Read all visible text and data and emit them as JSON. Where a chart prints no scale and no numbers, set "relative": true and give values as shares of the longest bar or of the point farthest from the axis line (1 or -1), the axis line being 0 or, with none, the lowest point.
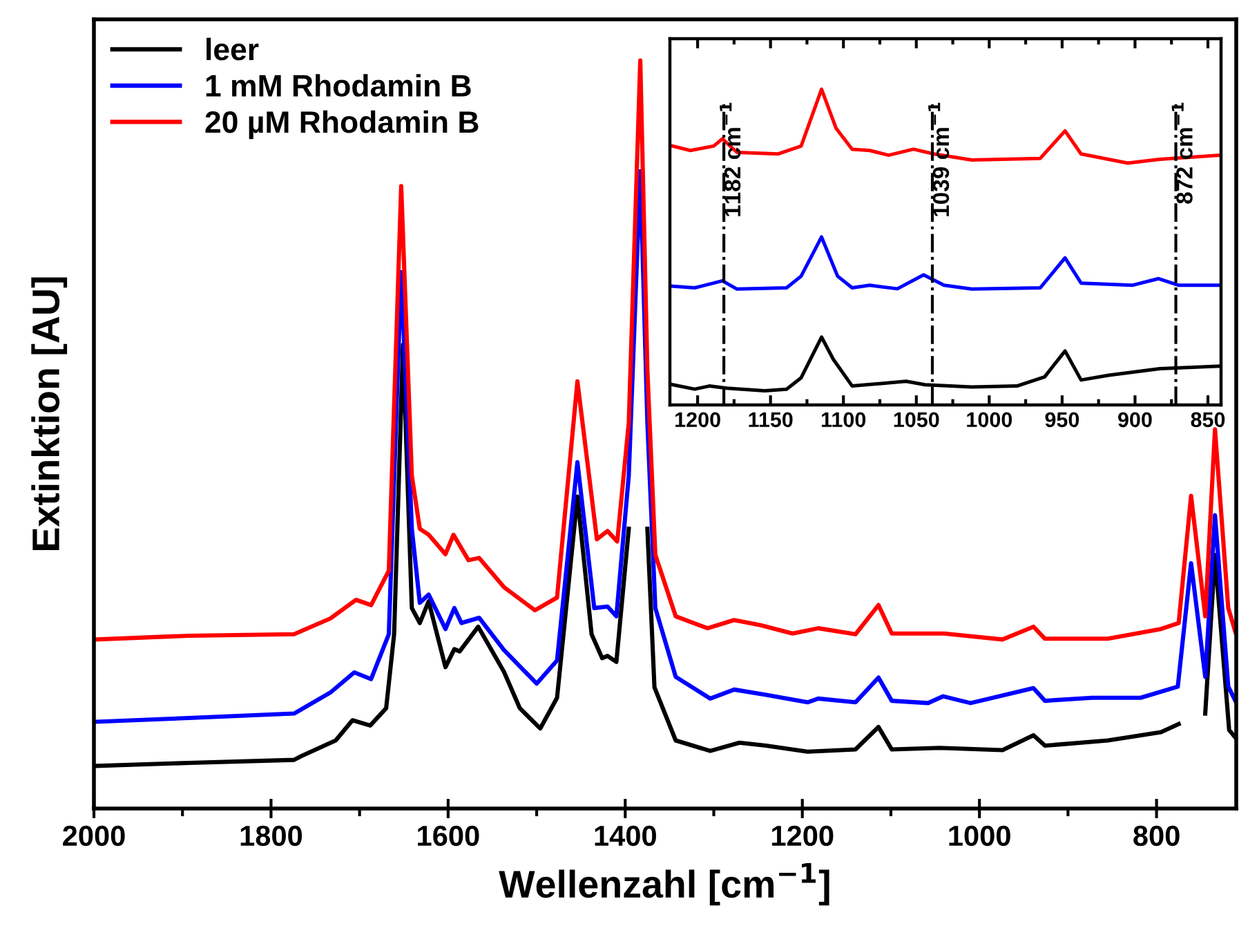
{
  "chart_data": [
    {
      "type": "line",
      "relative": true,
      "xlabel": "Wellenzahl [cm$^{−1}$]",
      "ylabel": "Extinktion [AU]",
      "xlim": [
        2000,
        710
      ],
      "xticks": [
        2000,
        {
          "value": 1900,
          "label": null
        },
        1800,
        {
          "value": 1700,
          "label": null
        },
        1600,
        {
          "value": 1500,
          "label": null
        },
        1400,
        {
          "value": 1300,
          "label": null
        },
        1200,
        {
          "value": 1100,
          "label": null
        },
        1000,
        {
          "value": 900,
          "label": null
        },
        800
      ],
      "tick_labels": "x",
      "legend": "top left",
      "grid": false,
      "series": [
        {
          "name": "leer",
          "color": "#000000",
          "x": [
            1997,
            1893,
            1774,
            1766,
            1727,
            1708,
            1688,
            1670,
            1661,
            1651,
            1641,
            1632,
            1622,
            1603,
            1593,
            1587,
            1566,
            1537,
            1519,
            1496,
            1477,
            1454,
            1438,
            1426,
            1420,
            1410,
            1396,
            1383,
            1375,
            1367,
            1343,
            1304,
            1271,
            1241,
            1194,
            1140,
            1114,
            1099,
            1045,
            974,
            939,
            926,
            855,
            795,
            775,
            761,
            745,
            734,
            718,
            711
          ],
          "values": [
            0.057,
            0.061,
            0.065,
            0.07,
            0.091,
            0.118,
            0.111,
            0.134,
            0.233,
            0.62,
            0.268,
            0.248,
            0.277,
            0.189,
            0.213,
            0.21,
            0.243,
            0.183,
            0.134,
            0.107,
            0.148,
            0.417,
            0.233,
            0.201,
            0.204,
            0.196,
            0.374,
            null,
            0.374,
            0.162,
            0.091,
            0.077,
            0.088,
            0.084,
            0.076,
            0.079,
            0.109,
            0.079,
            0.081,
            0.078,
            0.098,
            0.084,
            0.091,
            0.102,
            0.113,
            null,
            0.127,
            0.339,
            0.105,
            0.095
          ]
        },
        {
          "name": "1 mM Rhodamin B",
          "color": "#0000ff",
          "x": [
            1997,
            1893,
            1774,
            1733,
            1706,
            1687,
            1667,
            1653,
            1641,
            1632,
            1622,
            1603,
            1593,
            1585,
            1565,
            1537,
            1500,
            1477,
            1454,
            1435,
            1420,
            1410,
            1396,
            1383,
            1375,
            1366,
            1343,
            1304,
            1277,
            1241,
            1194,
            1182,
            1140,
            1114,
            1099,
            1058,
            1041,
            1010,
            939,
            926,
            873,
            818,
            776,
            761,
            745,
            734,
            719,
            711
          ],
          "values": [
            0.116,
            0.121,
            0.127,
            0.155,
            0.182,
            0.173,
            0.233,
            0.717,
            0.374,
            0.275,
            0.286,
            0.24,
            0.268,
            0.248,
            0.255,
            0.212,
            0.167,
            0.198,
            0.463,
            0.268,
            0.27,
            0.257,
            0.445,
            0.852,
            0.516,
            0.268,
            0.176,
            0.147,
            0.159,
            0.152,
            0.142,
            0.147,
            0.142,
            0.175,
            0.144,
            0.141,
            0.15,
            0.141,
            0.161,
            0.144,
            0.148,
            0.148,
            0.163,
            0.328,
            0.176,
            0.392,
            0.163,
            0.144
          ]
        },
        {
          "name": "20 µM Rhodamin B",
          "color": "#ff0000",
          "x": [
            1997,
            1893,
            1774,
            1733,
            1704,
            1687,
            1667,
            1653,
            1641,
            1632,
            1622,
            1603,
            1594,
            1577,
            1565,
            1537,
            1502,
            1477,
            1454,
            1432,
            1420,
            1409,
            1396,
            1383,
            1375,
            1366,
            1343,
            1307,
            1277,
            1247,
            1211,
            1182,
            1140,
            1114,
            1099,
            1040,
            974,
            939,
            926,
            855,
            795,
            775,
            761,
            745,
            734,
            719,
            711
          ],
          "values": [
            0.226,
            0.231,
            0.233,
            0.254,
            0.279,
            0.272,
            0.318,
            0.832,
            0.445,
            0.374,
            0.366,
            0.34,
            0.366,
            0.332,
            0.335,
            0.296,
            0.265,
            0.282,
            0.571,
            0.36,
            0.371,
            0.357,
            0.516,
            1.0,
            0.586,
            0.339,
            0.257,
            0.241,
            0.252,
            0.245,
            0.234,
            0.241,
            0.233,
            0.272,
            0.234,
            0.234,
            0.226,
            0.243,
            0.227,
            0.227,
            0.24,
            0.248,
            0.418,
            0.257,
            0.507,
            0.268,
            0.236
          ]
        }
      ]
    },
    {
      "type": "line",
      "relative": true,
      "xlim": [
        1219,
        841
      ],
      "xticks": [
        1200,
        {
          "value": 1175,
          "label": null
        },
        1150,
        {
          "value": 1125,
          "label": null
        },
        1100,
        {
          "value": 1075,
          "label": null
        },
        1050,
        {
          "value": 1025,
          "label": null
        },
        1000,
        {
          "value": 975,
          "label": null
        },
        950,
        {
          "value": 925,
          "label": null
        },
        900,
        {
          "value": 875,
          "label": null
        },
        850
      ],
      "tick_labels": "x",
      "grid": false,
      "ref_lines": [
        {
          "axis": "x",
          "value": 1182,
          "label": "1182 cm$^{−1}$",
          "color": "#000000",
          "line_style": "dashdot"
        },
        {
          "axis": "x",
          "value": 1039,
          "label": "1039 cm$^{−1}$",
          "color": "#000000",
          "line_style": "dashdot"
        },
        {
          "axis": "x",
          "value": 872,
          "label": "872 cm$^{−1}$",
          "color": "#000000",
          "line_style": "dashdot"
        }
      ],
      "series": [
        {
          "color": "#000000",
          "x": [
            1217,
            1202,
            1192,
            1180,
            1154,
            1139,
            1129,
            1115,
            1107,
            1094,
            1057,
            1044,
            1012,
            981,
            962,
            948,
            937,
            918,
            883,
            842
          ],
          "values": [
            0.064,
            0.05,
            0.06,
            0.053,
            0.045,
            0.05,
            0.086,
            0.215,
            0.145,
            0.06,
            0.075,
            0.064,
            0.057,
            0.06,
            0.089,
            0.171,
            0.079,
            0.094,
            0.115,
            0.123
          ]
        },
        {
          "color": "#0000ff",
          "x": [
            1217,
            1202,
            1183,
            1173,
            1139,
            1129,
            1115,
            1104,
            1094,
            1082,
            1063,
            1045,
            1031,
            1012,
            965,
            948,
            937,
            902,
            884,
            870,
            842
          ],
          "values": [
            0.376,
            0.371,
            0.393,
            0.367,
            0.371,
            0.408,
            0.532,
            0.408,
            0.371,
            0.379,
            0.368,
            0.412,
            0.379,
            0.367,
            0.371,
            0.466,
            0.386,
            0.379,
            0.4,
            0.379,
            0.379
          ]
        },
        {
          "color": "#ff0000",
          "x": [
            1217,
            1205,
            1189,
            1183,
            1173,
            1145,
            1129,
            1115,
            1105,
            1094,
            1082,
            1069,
            1052,
            1038,
            1012,
            965,
            948,
            937,
            905,
            883,
            842
          ],
          "values": [
            0.82,
            0.806,
            0.82,
            0.843,
            0.8,
            0.795,
            0.82,
            1.0,
            0.876,
            0.81,
            0.806,
            0.791,
            0.81,
            0.795,
            0.776,
            0.781,
            0.868,
            0.795,
            0.766,
            0.778,
            0.791
          ]
        }
      ]
    }
  ]
}
